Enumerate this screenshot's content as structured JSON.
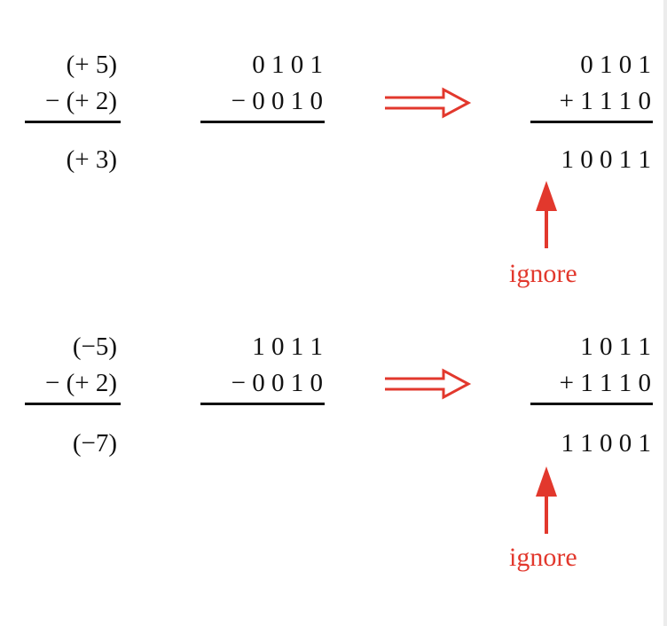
{
  "accent_color": "#e2382d",
  "examples": [
    {
      "decimal": {
        "a": "(+ 5)",
        "b": "− (+ 2)",
        "result": "(+ 3)"
      },
      "binary": {
        "a": "0 1 0 1",
        "b": "− 0 0 1 0"
      },
      "complement": {
        "a": "0 1 0 1",
        "b": "+ 1 1 1 0",
        "result": "1 0 0 1 1"
      },
      "note": "ignore"
    },
    {
      "decimal": {
        "a": "(−5)",
        "b": "− (+ 2)",
        "result": "(−7)"
      },
      "binary": {
        "a": "1 0 1 1",
        "b": "− 0 0 1 0"
      },
      "complement": {
        "a": "1 0 1 1",
        "b": "+ 1 1 1 0",
        "result": "1 1 0 0 1"
      },
      "note": "ignore"
    }
  ],
  "icons": {
    "transform": "double-arrow-right-icon",
    "pointer": "arrow-up-icon"
  }
}
